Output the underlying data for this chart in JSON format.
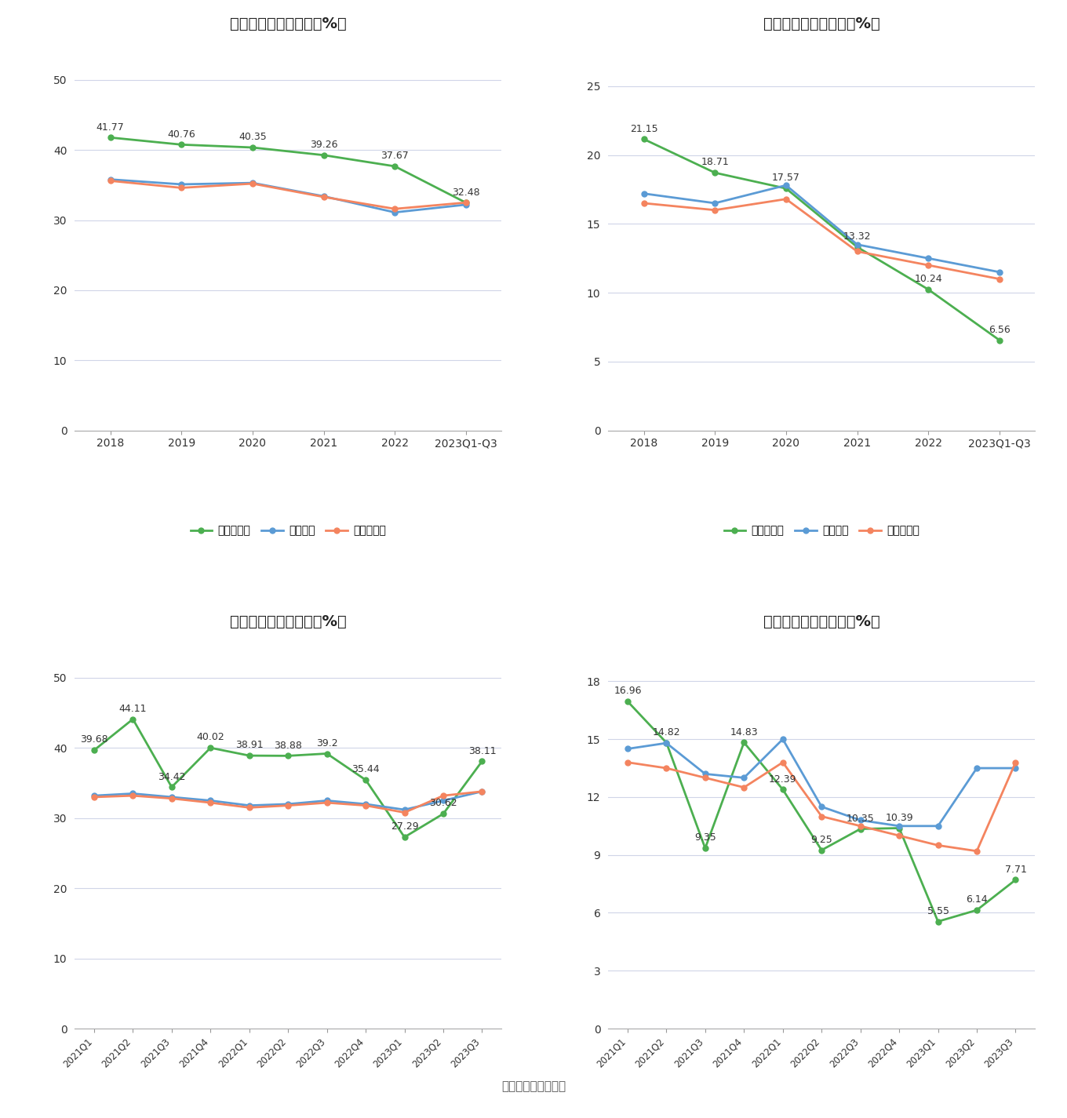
{
  "top_left": {
    "title": "历年毛利率变化情况（%）",
    "x_labels": [
      "2018",
      "2019",
      "2020",
      "2021",
      "2022",
      "2023Q1-Q3"
    ],
    "company": [
      41.77,
      40.76,
      40.35,
      39.26,
      37.67,
      32.48
    ],
    "industry_mean": [
      35.8,
      35.1,
      35.3,
      33.4,
      31.1,
      32.2
    ],
    "industry_median": [
      35.6,
      34.6,
      35.2,
      33.3,
      31.6,
      32.5
    ],
    "ylim": [
      0,
      55
    ],
    "yticks": [
      0,
      10,
      20,
      30,
      40,
      50
    ]
  },
  "top_right": {
    "title": "历年净利率变化情况（%）",
    "x_labels": [
      "2018",
      "2019",
      "2020",
      "2021",
      "2022",
      "2023Q1-Q3"
    ],
    "company": [
      21.15,
      18.71,
      17.57,
      13.32,
      10.24,
      6.56
    ],
    "industry_mean": [
      17.2,
      16.5,
      17.8,
      13.5,
      12.5,
      11.5
    ],
    "industry_median": [
      16.5,
      16.0,
      16.8,
      13.0,
      12.0,
      11.0
    ],
    "ylim": [
      0,
      28
    ],
    "yticks": [
      0,
      5,
      10,
      15,
      20,
      25
    ]
  },
  "bottom_left": {
    "title": "季度毛利率变化情况（%）",
    "x_labels": [
      "2021Q1",
      "2021Q2",
      "2021Q3",
      "2021Q4",
      "2022Q1",
      "2022Q2",
      "2022Q3",
      "2022Q4",
      "2023Q1",
      "2023Q2",
      "2023Q3"
    ],
    "company": [
      39.68,
      44.11,
      34.42,
      40.02,
      38.91,
      38.88,
      39.2,
      35.44,
      27.29,
      30.62,
      38.11
    ],
    "industry_mean": [
      33.2,
      33.5,
      33.0,
      32.5,
      31.8,
      32.0,
      32.5,
      32.0,
      31.2,
      32.5,
      33.8
    ],
    "industry_median": [
      33.0,
      33.2,
      32.8,
      32.2,
      31.5,
      31.8,
      32.2,
      31.8,
      30.8,
      33.2,
      33.8
    ],
    "ylim": [
      0,
      55
    ],
    "yticks": [
      0,
      10,
      20,
      30,
      40,
      50
    ]
  },
  "bottom_right": {
    "title": "季度净利率变化情况（%）",
    "x_labels": [
      "2021Q1",
      "2021Q2",
      "2021Q3",
      "2021Q4",
      "2022Q1",
      "2022Q2",
      "2022Q3",
      "2022Q4",
      "2023Q1",
      "2023Q2",
      "2023Q3"
    ],
    "company": [
      16.96,
      14.82,
      9.35,
      14.83,
      12.39,
      9.25,
      10.35,
      10.39,
      5.55,
      6.14,
      7.71
    ],
    "industry_mean": [
      14.5,
      14.8,
      13.2,
      13.0,
      15.0,
      11.5,
      10.8,
      10.5,
      10.5,
      13.5,
      13.5
    ],
    "industry_median": [
      13.8,
      13.5,
      13.0,
      12.5,
      13.8,
      11.0,
      10.5,
      10.0,
      9.5,
      9.2,
      13.8
    ],
    "ylim": [
      0,
      20
    ],
    "yticks": [
      0,
      3,
      6,
      9,
      12,
      15,
      18
    ]
  },
  "colors": {
    "company": "#4caf50",
    "industry_mean": "#5b9bd5",
    "industry_median": "#f4845f"
  },
  "source": "数据来源：恒生聚源",
  "bg_color": "#ffffff",
  "grid_color": "#d0d5e8",
  "marker": "o",
  "marker_size": 5,
  "line_width": 2
}
